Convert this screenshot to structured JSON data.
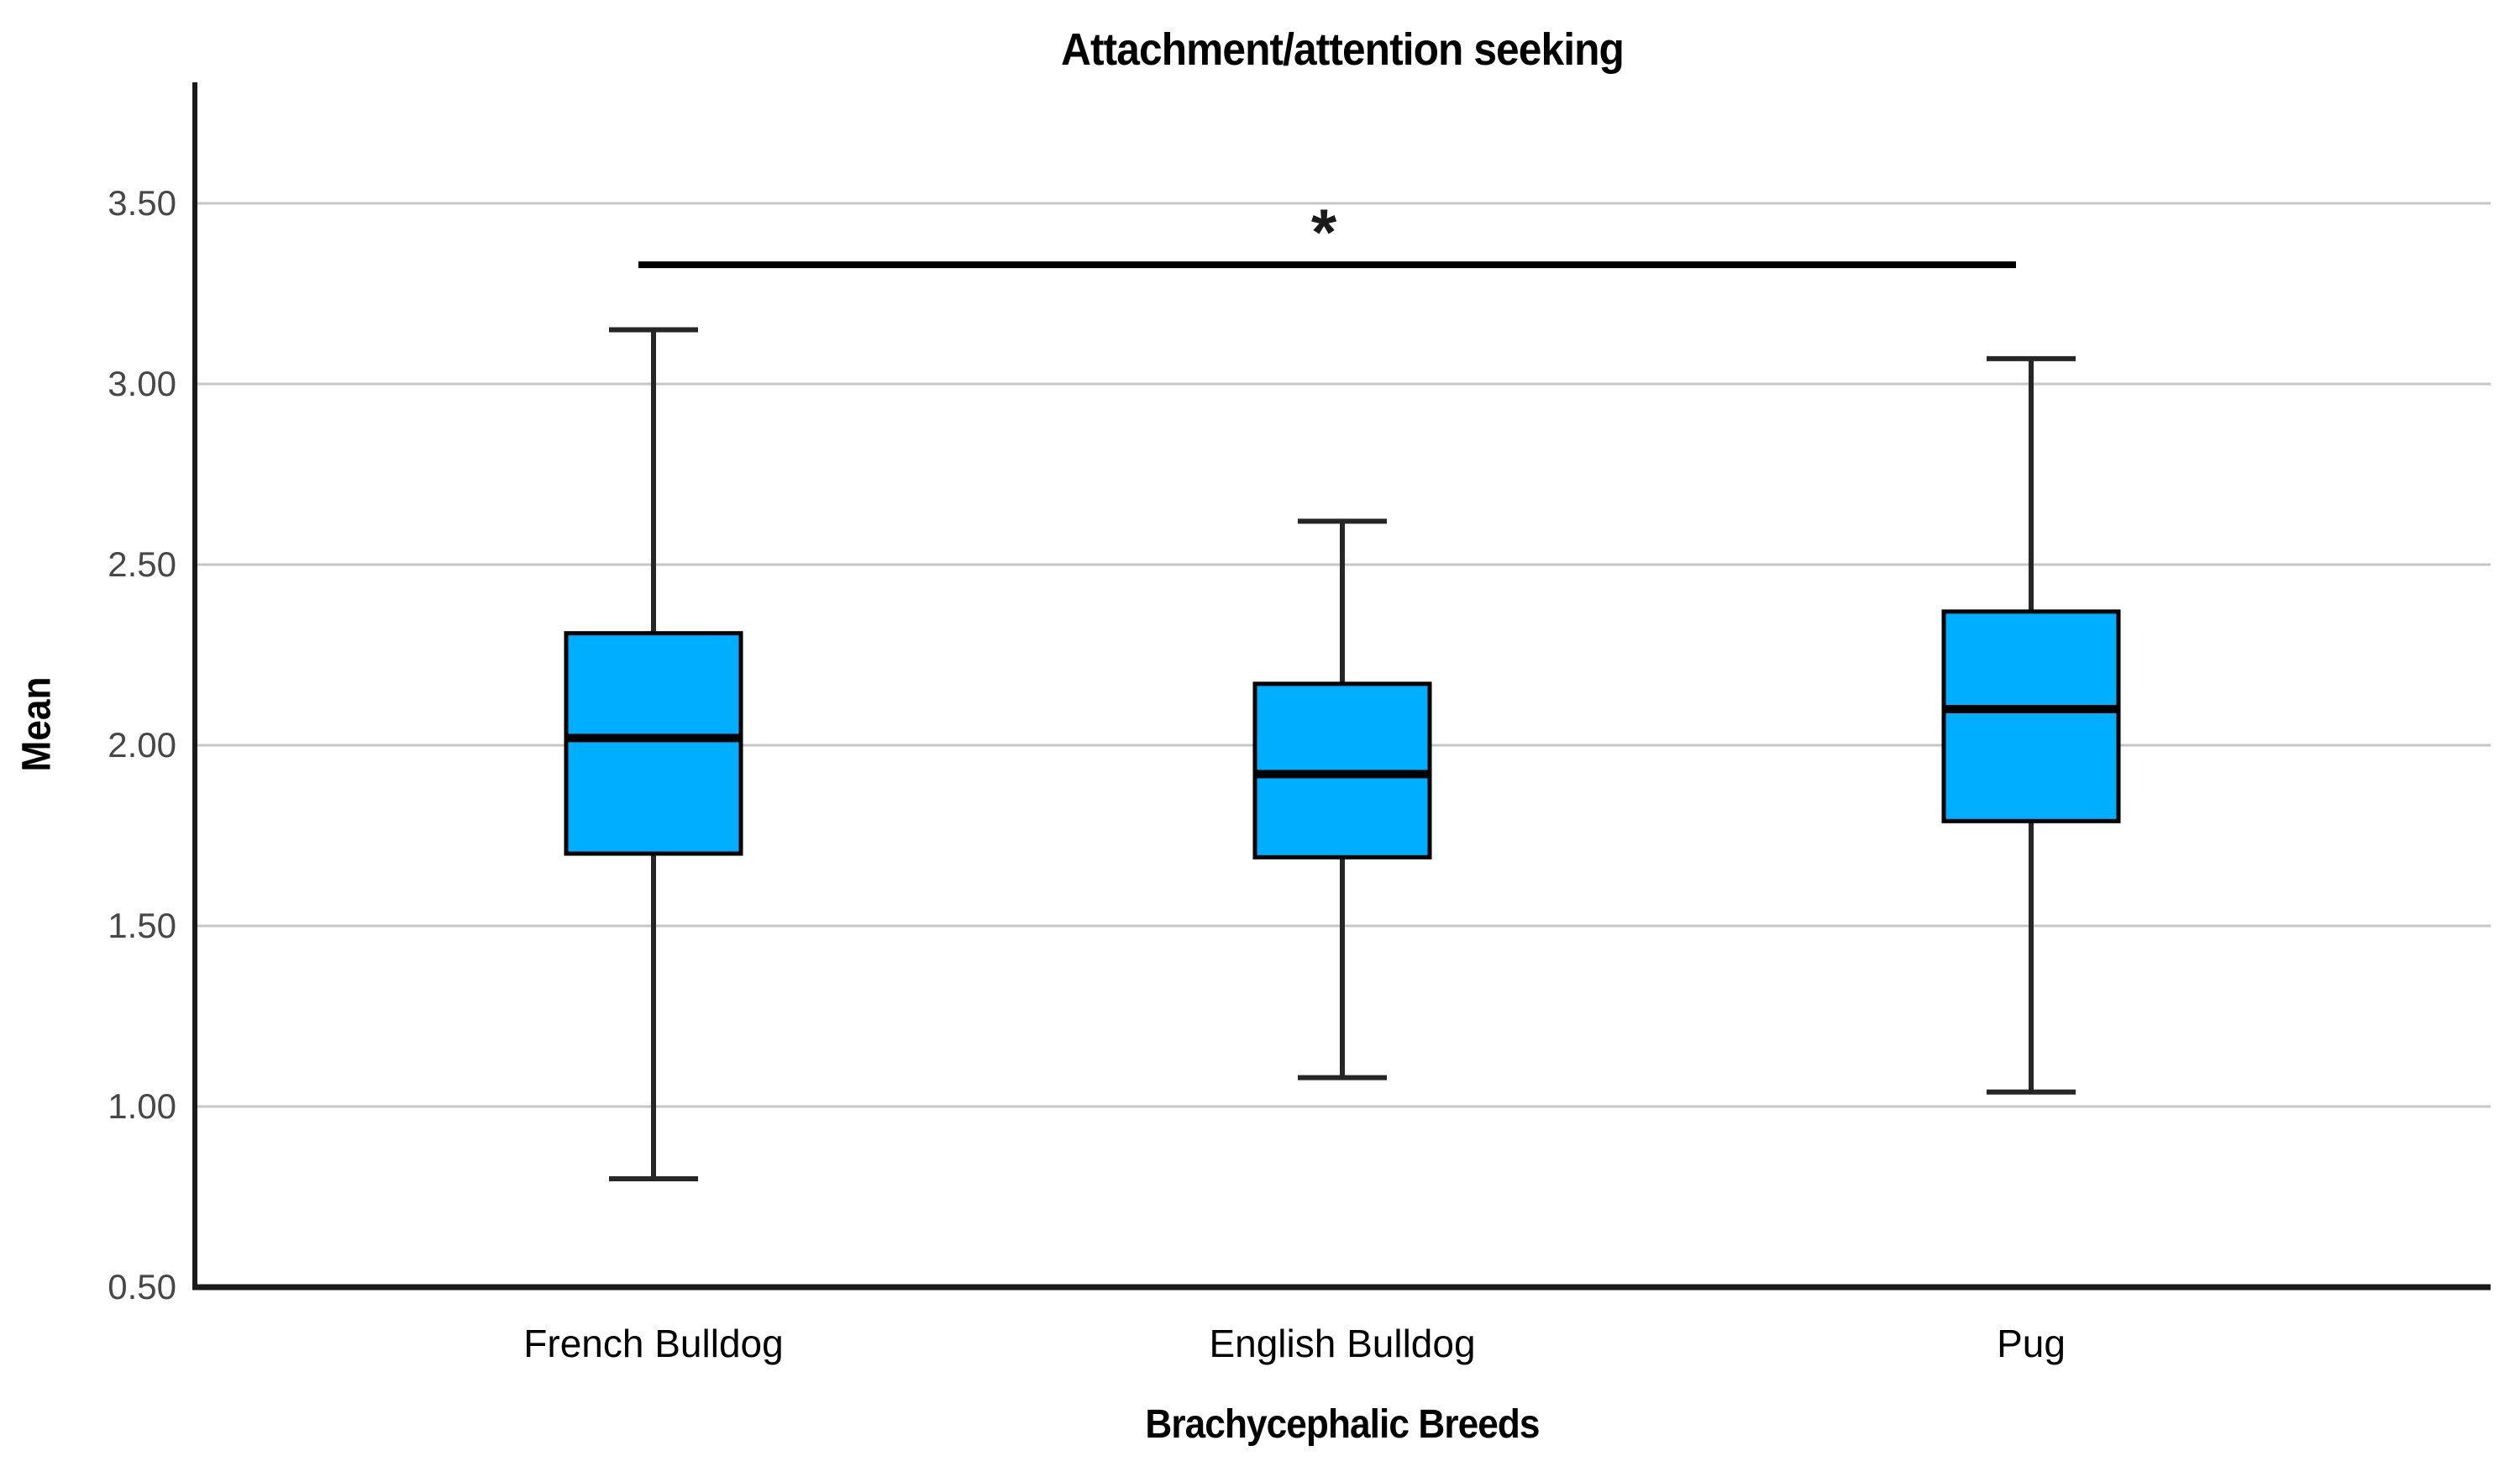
{
  "title": "Attachment/attention seeking",
  "chart_data": {
    "type": "boxplot",
    "title": "Attachment/attention seeking",
    "xlabel": "Brachycephalic Breeds",
    "ylabel": "Mean",
    "categories": [
      "French Bulldog",
      "English Bulldog",
      "Pug"
    ],
    "yticks": [
      "0.50",
      "1.00",
      "1.50",
      "2.00",
      "2.50",
      "3.00",
      "3.50"
    ],
    "ylim": [
      0.5,
      3.84
    ],
    "grid": true,
    "legend": "none",
    "series": [
      {
        "name": "French Bulldog",
        "min": 0.8,
        "q1": 1.7,
        "median": 2.02,
        "q3": 2.31,
        "max": 3.15
      },
      {
        "name": "English Bulldog",
        "min": 1.08,
        "q1": 1.69,
        "median": 1.92,
        "q3": 2.17,
        "max": 2.62
      },
      {
        "name": "Pug",
        "min": 1.04,
        "q1": 1.79,
        "median": 2.1,
        "q3": 2.37,
        "max": 3.07
      }
    ],
    "significance": {
      "label": "*",
      "from": "French Bulldog",
      "to": "Pug",
      "y": 3.33
    },
    "colors": {
      "box_fill": "#00AEFF",
      "box_border": "#000000",
      "median": "#000000",
      "whisker": "#262626",
      "gridline": "#C6C6C6",
      "axis": "#1A1A1A",
      "text": "#000000",
      "tick_text": "#474747"
    }
  }
}
